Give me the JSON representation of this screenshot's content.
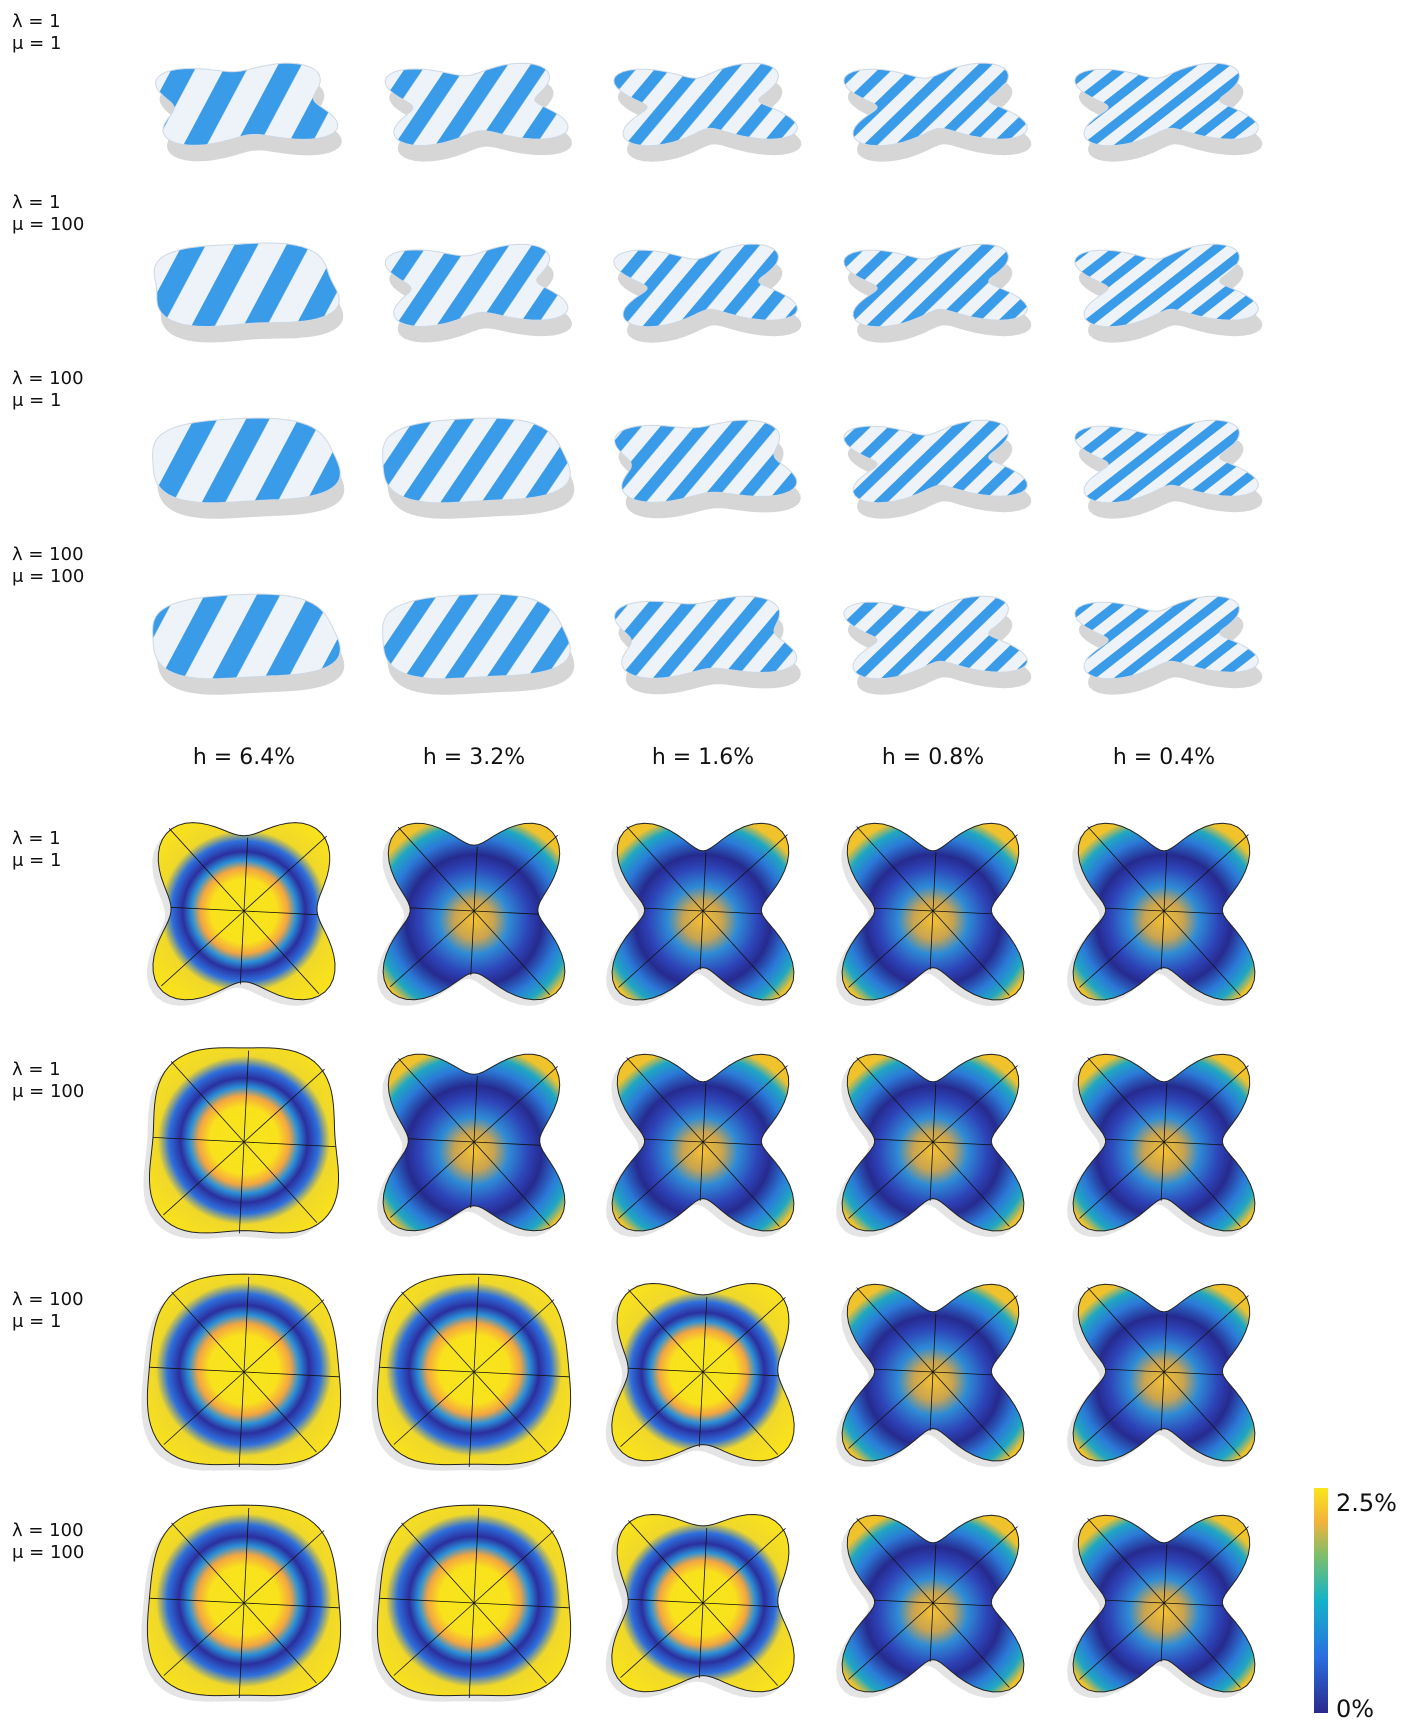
{
  "top_panel": {
    "rows": [
      {
        "lambda": "λ = 1",
        "mu": "μ = 1"
      },
      {
        "lambda": "λ = 1",
        "mu": "μ = 100"
      },
      {
        "lambda": "λ = 100",
        "mu": "μ = 1"
      },
      {
        "lambda": "λ = 100",
        "mu": "μ = 100"
      }
    ]
  },
  "column_labels": [
    "h = 6.4%",
    "h = 3.2%",
    "h = 1.6%",
    "h = 0.8%",
    "h = 0.4%"
  ],
  "bottom_panel": {
    "rows": [
      {
        "lambda": "λ = 1",
        "mu": "μ = 1"
      },
      {
        "lambda": "λ = 1",
        "mu": "μ = 100"
      },
      {
        "lambda": "λ = 100",
        "mu": "μ = 1"
      },
      {
        "lambda": "λ = 100",
        "mu": "μ = 100"
      }
    ]
  },
  "colorbar": {
    "max_label": "2.5%",
    "min_label": "0%"
  }
}
